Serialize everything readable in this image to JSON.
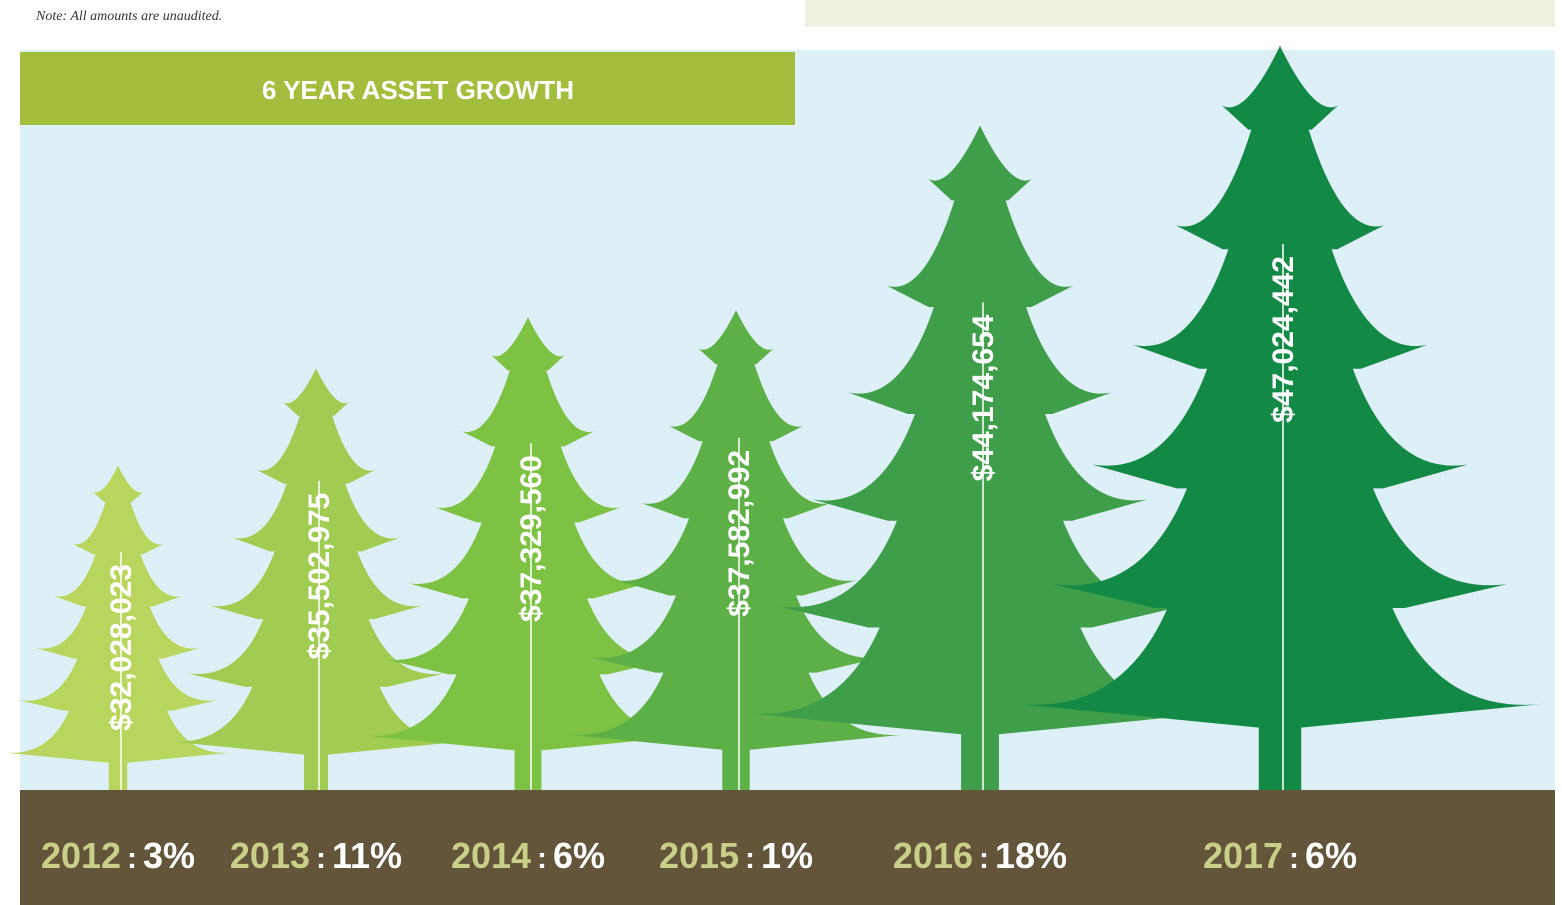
{
  "note": "Note: All amounts are unaudited.",
  "chart_data": {
    "type": "pictograph",
    "title": "6 YEAR ASSET GROWTH",
    "categories": [
      "2012",
      "2013",
      "2014",
      "2015",
      "2016",
      "2017"
    ],
    "values": [
      32028023,
      35502975,
      37329560,
      37582992,
      44174654,
      47024442
    ],
    "value_labels": [
      "$32,028,023",
      "$35,502,975",
      "$37,329,560",
      "$37,582,992",
      "$44,174,654",
      "$47,024,442"
    ],
    "colors": [
      "#b8d65e",
      "#9fcc51",
      "#7dc242",
      "#5cb046",
      "#3f9e4a",
      "#128a45"
    ],
    "growth": {
      "values": [
        3,
        11,
        6,
        1,
        18,
        6
      ],
      "value_labels": [
        "3%",
        "11%",
        "6%",
        "1%",
        "18%",
        "6%"
      ]
    },
    "label_separator": ":"
  }
}
